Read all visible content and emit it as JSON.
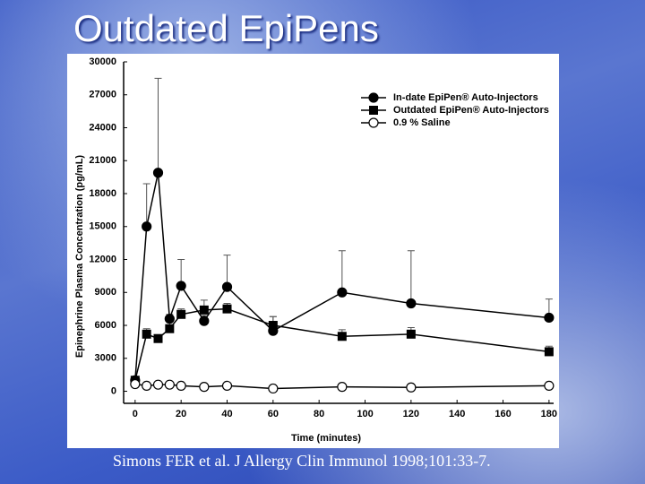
{
  "slide": {
    "title": "Outdated EpiPens",
    "caption": "Simons FER et al.  J Allergy Clin Immunol 1998;101:33-7."
  },
  "chart_data": {
    "type": "line",
    "x_label": "Time (minutes)",
    "y_label": "Epinephrine Plasma Concentration (pg/mL)",
    "x": [
      0,
      5,
      10,
      15,
      20,
      30,
      40,
      60,
      90,
      120,
      180
    ],
    "series": [
      {
        "name": "In-date EpiPen® Auto-Injectors",
        "marker": "filled-circle",
        "color": "#000000",
        "values": [
          1000,
          15000,
          19900,
          6600,
          9600,
          6400,
          9500,
          5500,
          9000,
          8000,
          6700
        ],
        "errors": [
          200,
          3900,
          8600,
          400,
          2400,
          500,
          2900,
          1300,
          3800,
          4800,
          1700
        ]
      },
      {
        "name": "Outdated EpiPen® Auto-Injectors",
        "marker": "filled-square",
        "color": "#000000",
        "values": [
          1000,
          5200,
          4800,
          5700,
          7000,
          7400,
          7500,
          6000,
          5000,
          5200,
          3600
        ],
        "errors": [
          200,
          500,
          300,
          600,
          500,
          900,
          500,
          800,
          600,
          600,
          500
        ]
      },
      {
        "name": "0.9 % Saline",
        "marker": "open-circle",
        "color": "#000000",
        "values": [
          650,
          500,
          600,
          600,
          500,
          400,
          500,
          250,
          400,
          350,
          500
        ],
        "errors": [
          100,
          100,
          100,
          100,
          100,
          100,
          100,
          100,
          100,
          100,
          100
        ]
      }
    ],
    "xlim": [
      -5,
      182
    ],
    "xticks": [
      0,
      20,
      40,
      60,
      80,
      100,
      120,
      140,
      160,
      180
    ],
    "ylim": [
      -1100,
      30000
    ],
    "yticks": [
      0,
      3000,
      6000,
      9000,
      12000,
      15000,
      18000,
      21000,
      24000,
      27000,
      30000
    ],
    "legend": "upper-right"
  }
}
